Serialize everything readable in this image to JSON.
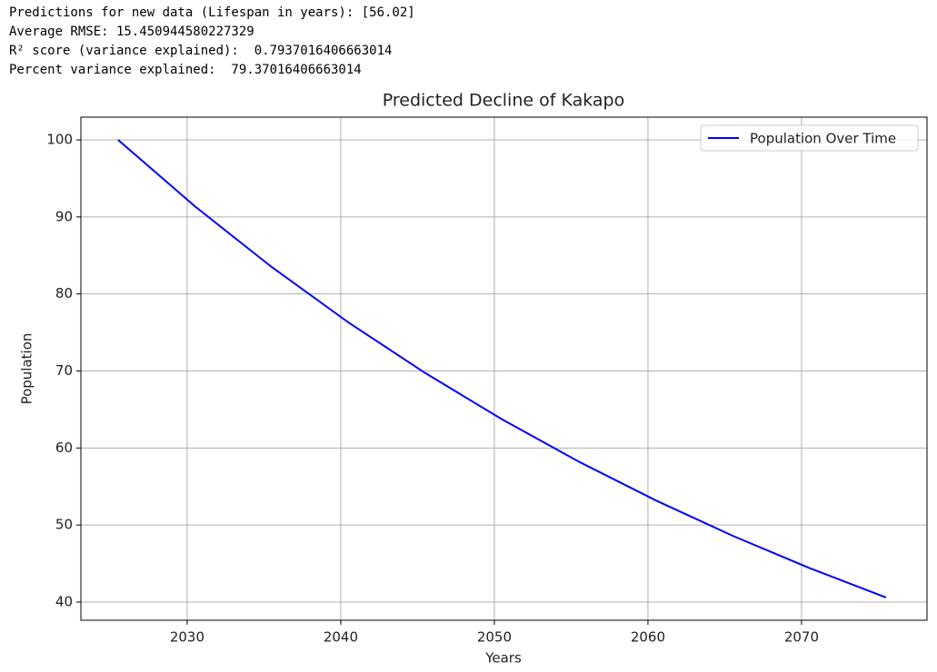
{
  "output_lines": [
    "Predictions for new data (Lifespan in years): [56.02]",
    "Average RMSE: 15.450944580227329",
    "R² score (variance explained):  0.7937016406663014",
    "Percent variance explained:  79.37016406663014"
  ],
  "chart_data": {
    "type": "line",
    "title": "Predicted Decline of Kakapo",
    "x_label": "Years",
    "y_label": "Population",
    "x": [
      2025.5,
      2030.5,
      2035.5,
      2040.5,
      2045.5,
      2050.5,
      2055.5,
      2060.5,
      2065.5,
      2070.5,
      2075.5
    ],
    "series": [
      {
        "name": "Population Over Time",
        "color": "#0000ff",
        "values": [
          100,
          91.38,
          83.5,
          76.3,
          69.73,
          63.72,
          58.23,
          53.21,
          48.62,
          44.43,
          40.6
        ]
      }
    ],
    "xlim": [
      2023.08,
      2078.17
    ],
    "xticks": [
      2030,
      2040,
      2050,
      2060,
      2070
    ],
    "ylim": [
      37.64,
      102.95
    ],
    "yticks": [
      40,
      50,
      60,
      70,
      80,
      90,
      100
    ],
    "grid": true,
    "legend": "upper right"
  }
}
